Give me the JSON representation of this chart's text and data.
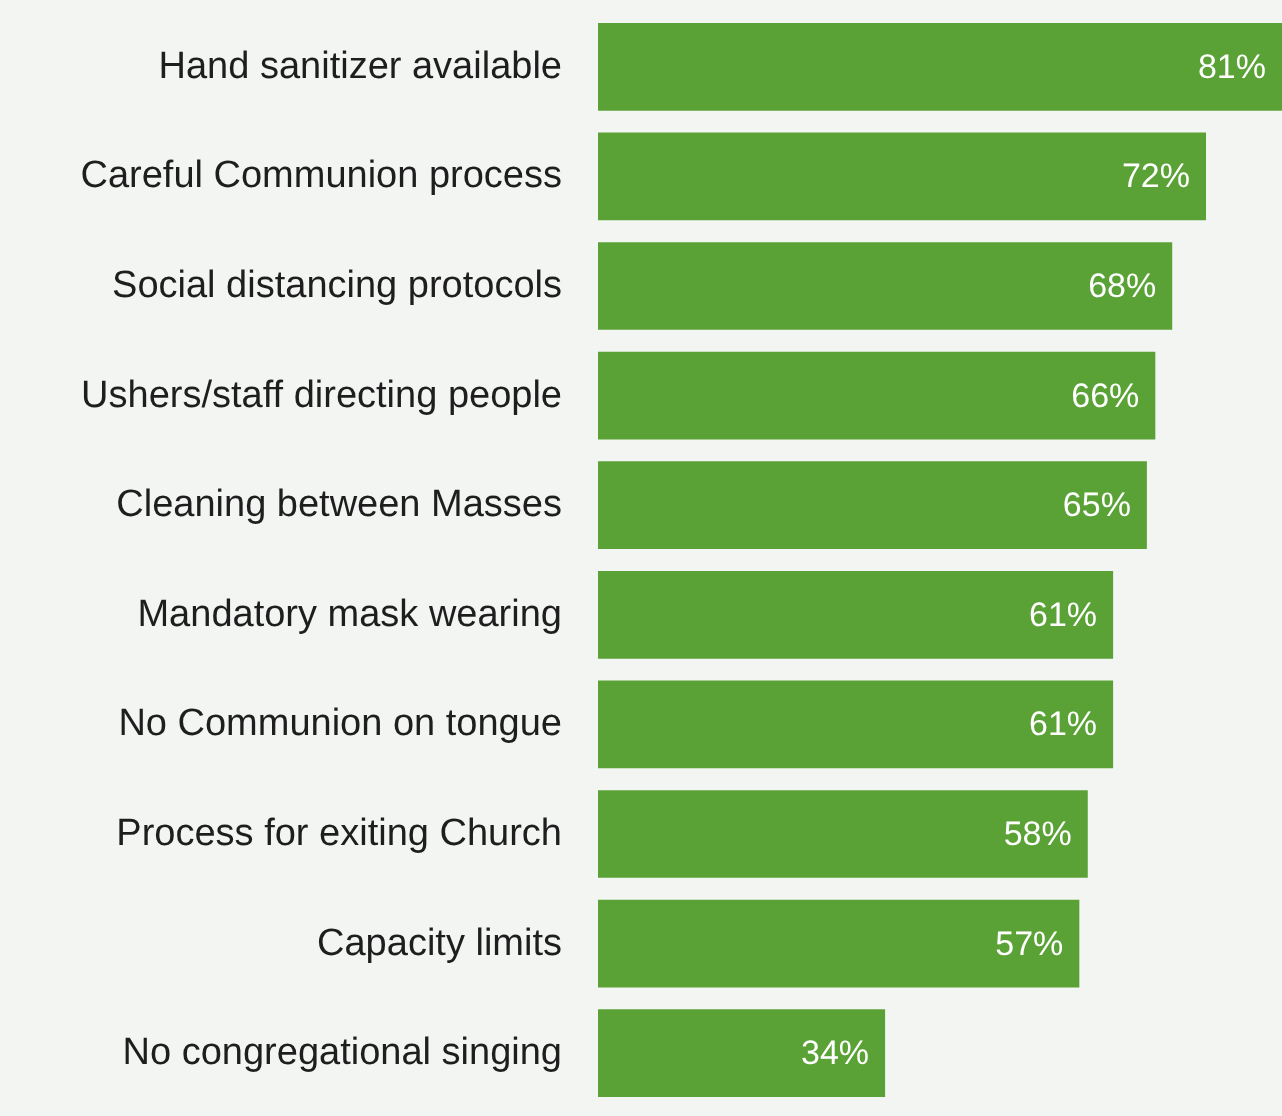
{
  "chart_data": {
    "type": "bar",
    "orientation": "horizontal",
    "color": "#5aa235",
    "value_labels": [
      "81%",
      "72%",
      "68%",
      "66%",
      "65%",
      "61%",
      "61%",
      "58%",
      "57%",
      "34%"
    ],
    "categories": [
      "Hand sanitizer available",
      "Careful Communion process",
      "Social distancing protocols",
      "Ushers/staff directing people",
      "Cleaning between Masses",
      "Mandatory mask wearing",
      "No Communion on tongue",
      "Process for exiting Church",
      "Capacity limits",
      "No congregational singing"
    ],
    "values": [
      81,
      72,
      68,
      66,
      65,
      61,
      61,
      58,
      57,
      34
    ]
  }
}
